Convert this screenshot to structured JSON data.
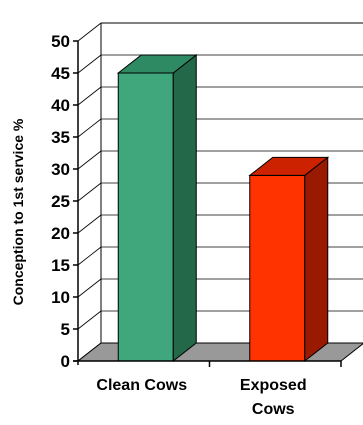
{
  "chart_data": {
    "type": "bar",
    "three_d": true,
    "categories": [
      [
        "Clean Cows"
      ],
      [
        "Exposed",
        "Cows"
      ]
    ],
    "values": [
      45,
      29
    ],
    "colors": {
      "front": [
        "#3FA77B",
        "#FF3300"
      ],
      "top": [
        "#2E8A62",
        "#CC2200"
      ],
      "side": [
        "#24684A",
        "#991A00"
      ],
      "floor": "#999999"
    },
    "title": "",
    "xlabel": "",
    "ylabel": "Conception to 1st service %",
    "ylim": [
      0,
      50
    ],
    "ytick_step": 5,
    "grid": true,
    "legend": "none"
  }
}
